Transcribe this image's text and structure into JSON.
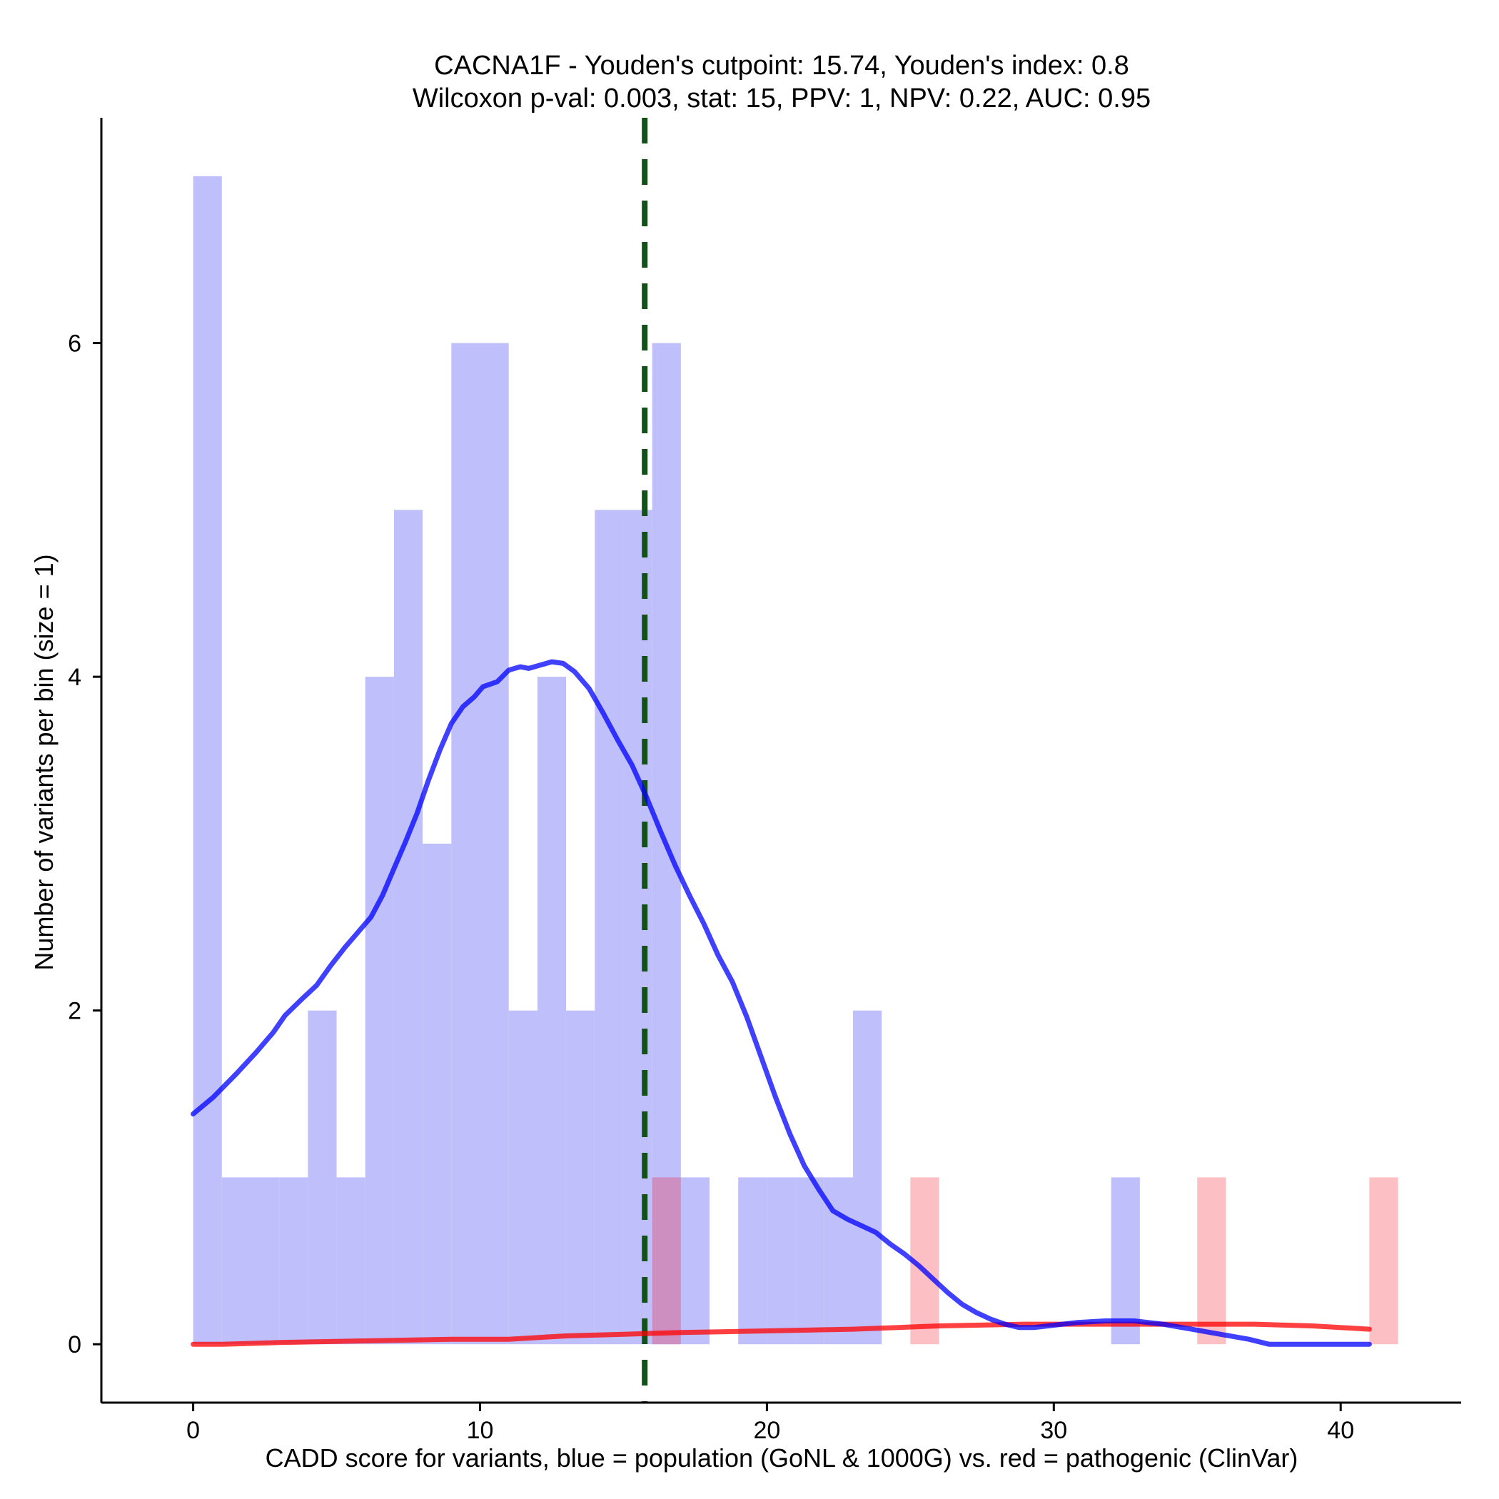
{
  "chart_data": {
    "type": "bar",
    "title_lines": [
      "CACNA1F - Youden's cutpoint: 15.74, Youden's index: 0.8",
      "Wilcoxon p-val: 0.003, stat: 15, PPV: 1, NPV: 0.22, AUC: 0.95"
    ],
    "xlabel": "CADD score for variants, blue = population (GoNL & 1000G) vs. red = pathogenic (ClinVar)",
    "ylabel": "Number of variants per bin (size = 1)",
    "xlim": [
      -3.2,
      44.2
    ],
    "ylim": [
      -0.35,
      7.35
    ],
    "x_ticks": [
      0,
      10,
      20,
      30,
      40
    ],
    "y_ticks": [
      0,
      2,
      4,
      6
    ],
    "bin_size": 1,
    "cutpoint": 15.74,
    "colors": {
      "population": "#0000ff",
      "pathogenic": "#ff0000",
      "population_bar": "#bfbffc",
      "pathogenic_bar": "#fcbfc3",
      "overlap_bar": "#cc8fbf",
      "cutpoint_line": "#14501a"
    },
    "series": [
      {
        "role": "population",
        "bins": [
          [
            0,
            7
          ],
          [
            1,
            1
          ],
          [
            2,
            1
          ],
          [
            3,
            1
          ],
          [
            4,
            2
          ],
          [
            5,
            1
          ],
          [
            6,
            4
          ],
          [
            7,
            5
          ],
          [
            8,
            3
          ],
          [
            9,
            6
          ],
          [
            10,
            6
          ],
          [
            11,
            2
          ],
          [
            12,
            4
          ],
          [
            13,
            2
          ],
          [
            14,
            5
          ],
          [
            15,
            5
          ],
          [
            16,
            6
          ],
          [
            17,
            1
          ],
          [
            19,
            1
          ],
          [
            20,
            1
          ],
          [
            21,
            1
          ],
          [
            22,
            1
          ],
          [
            23,
            2
          ],
          [
            32,
            1
          ]
        ],
        "density": [
          [
            0,
            1.38
          ],
          [
            0.7,
            1.48
          ],
          [
            1.5,
            1.62
          ],
          [
            2.2,
            1.75
          ],
          [
            2.8,
            1.87
          ],
          [
            3.2,
            1.97
          ],
          [
            3.8,
            2.07
          ],
          [
            4.3,
            2.15
          ],
          [
            4.8,
            2.27
          ],
          [
            5.3,
            2.38
          ],
          [
            5.7,
            2.46
          ],
          [
            6.2,
            2.56
          ],
          [
            6.6,
            2.69
          ],
          [
            7.0,
            2.85
          ],
          [
            7.4,
            3.01
          ],
          [
            7.8,
            3.18
          ],
          [
            8.2,
            3.38
          ],
          [
            8.6,
            3.56
          ],
          [
            9.0,
            3.72
          ],
          [
            9.4,
            3.82
          ],
          [
            9.8,
            3.88
          ],
          [
            10.1,
            3.94
          ],
          [
            10.6,
            3.97
          ],
          [
            11.0,
            4.04
          ],
          [
            11.4,
            4.06
          ],
          [
            11.7,
            4.05
          ],
          [
            12.1,
            4.07
          ],
          [
            12.5,
            4.09
          ],
          [
            12.9,
            4.08
          ],
          [
            13.3,
            4.03
          ],
          [
            13.8,
            3.93
          ],
          [
            14.3,
            3.78
          ],
          [
            14.8,
            3.62
          ],
          [
            15.3,
            3.47
          ],
          [
            15.8,
            3.28
          ],
          [
            16.3,
            3.07
          ],
          [
            16.8,
            2.87
          ],
          [
            17.3,
            2.69
          ],
          [
            17.8,
            2.52
          ],
          [
            18.3,
            2.33
          ],
          [
            18.8,
            2.17
          ],
          [
            19.3,
            1.96
          ],
          [
            19.8,
            1.72
          ],
          [
            20.3,
            1.48
          ],
          [
            20.8,
            1.26
          ],
          [
            21.3,
            1.07
          ],
          [
            21.8,
            0.93
          ],
          [
            22.3,
            0.8
          ],
          [
            22.8,
            0.75
          ],
          [
            23.3,
            0.71
          ],
          [
            23.8,
            0.67
          ],
          [
            24.3,
            0.6
          ],
          [
            24.8,
            0.54
          ],
          [
            25.3,
            0.47
          ],
          [
            25.8,
            0.39
          ],
          [
            26.3,
            0.31
          ],
          [
            26.8,
            0.24
          ],
          [
            27.3,
            0.19
          ],
          [
            27.8,
            0.15
          ],
          [
            28.3,
            0.12
          ],
          [
            28.8,
            0.1
          ],
          [
            29.3,
            0.1
          ],
          [
            29.8,
            0.11
          ],
          [
            30.8,
            0.13
          ],
          [
            31.8,
            0.14
          ],
          [
            32.8,
            0.14
          ],
          [
            33.8,
            0.12
          ],
          [
            34.8,
            0.09
          ],
          [
            35.8,
            0.06
          ],
          [
            36.8,
            0.03
          ],
          [
            37.5,
            0.0
          ],
          [
            38.5,
            0.0
          ],
          [
            39.5,
            0.0
          ],
          [
            40.5,
            0.0
          ],
          [
            41.0,
            0.0
          ]
        ]
      },
      {
        "role": "pathogenic",
        "bins": [
          [
            16,
            1
          ],
          [
            25,
            1
          ],
          [
            35,
            1
          ],
          [
            41,
            1
          ]
        ],
        "density": [
          [
            0,
            0.0
          ],
          [
            1,
            0.0
          ],
          [
            3,
            0.01
          ],
          [
            6,
            0.02
          ],
          [
            9,
            0.03
          ],
          [
            11,
            0.03
          ],
          [
            13,
            0.05
          ],
          [
            15,
            0.06
          ],
          [
            17,
            0.07
          ],
          [
            20,
            0.08
          ],
          [
            23,
            0.09
          ],
          [
            26,
            0.11
          ],
          [
            29,
            0.12
          ],
          [
            32,
            0.12
          ],
          [
            35,
            0.12
          ],
          [
            37,
            0.12
          ],
          [
            39,
            0.11
          ],
          [
            41,
            0.09
          ]
        ]
      }
    ]
  }
}
